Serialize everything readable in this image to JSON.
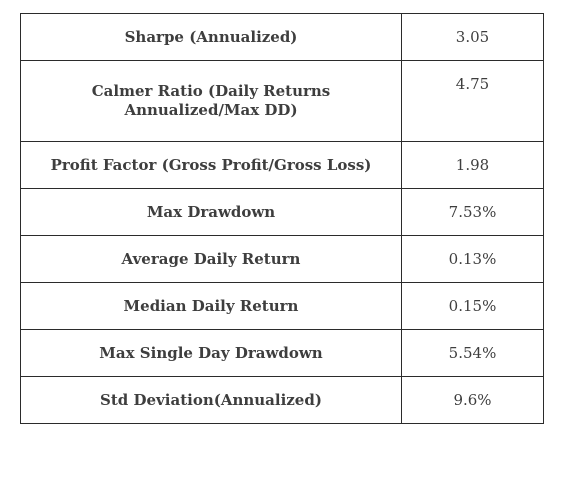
{
  "metrics_table": {
    "rows": [
      {
        "label": "Sharpe (Annualized)",
        "value": "3.05"
      },
      {
        "label": "Calmer Ratio (Daily Returns Annualized/Max DD)",
        "value": "4.75"
      },
      {
        "label": "Profit Factor (Gross Profit/Gross Loss)",
        "value": "1.98"
      },
      {
        "label": "Max Drawdown",
        "value": "7.53%"
      },
      {
        "label": "Average Daily Return",
        "value": "0.13%"
      },
      {
        "label": "Median Daily Return",
        "value": "0.15%"
      },
      {
        "label": "Max Single Day Drawdown",
        "value": "5.54%"
      },
      {
        "label": "Std Deviation(Annualized)",
        "value": "9.6%"
      }
    ]
  }
}
